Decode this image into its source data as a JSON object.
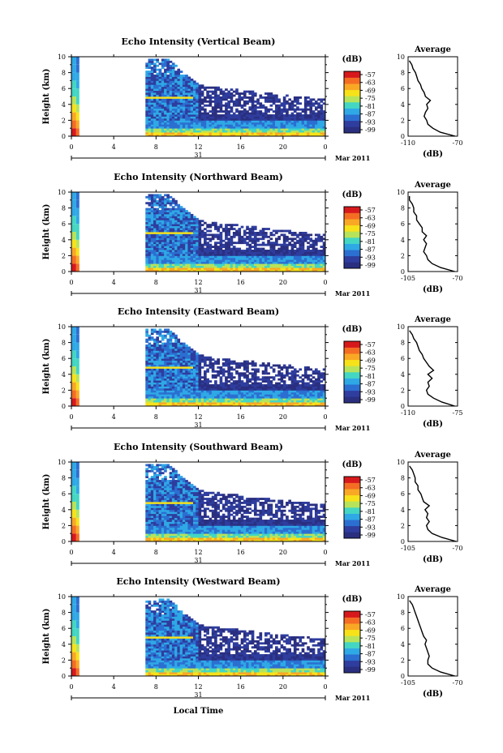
{
  "figure": {
    "panel_titles": [
      "Echo Intensity (Vertical Beam)",
      "Echo Intensity (Northward Beam)",
      "Echo Intensity (Eastward Beam)",
      "Echo Intensity (Southward Beam)",
      "Echo Intensity (Westward Beam)"
    ],
    "ylabel": "Height (km)",
    "x_ticks": [
      "0",
      "4",
      "8",
      "12",
      "16",
      "20",
      "0"
    ],
    "day_label": "31",
    "month_label": "Mar 2011",
    "xlabel_bottom": "Local Time",
    "y_ticks": [
      "0",
      "2",
      "4",
      "6",
      "8",
      "10"
    ],
    "colorbar_title": "(dB)",
    "colorbar_ticks": [
      "-57",
      "-63",
      "-69",
      "-75",
      "-81",
      "-87",
      "-93",
      "-99"
    ],
    "colorbar_colors": [
      "#d7191c",
      "#f46d23",
      "#f9a825",
      "#f7e21a",
      "#b7e35a",
      "#43d6c3",
      "#2fa8e6",
      "#2b6fd1",
      "#2e3d9e",
      "#2a2f80"
    ],
    "average_title": "Average",
    "average_xlabel": "(dB)",
    "average_x_ticks": [
      [
        "-110",
        "-70"
      ],
      [
        "-105",
        "-70"
      ],
      [
        "-110",
        "-75"
      ],
      [
        "-105",
        "-70"
      ],
      [
        "-105",
        "-70"
      ]
    ],
    "average_y_ticks": [
      "0",
      "2",
      "4",
      "6",
      "8",
      "10"
    ]
  },
  "chart_data": {
    "type": "heatmap",
    "x_unit": "local time (h)",
    "xlim": [
      0,
      24
    ],
    "ylim": [
      0,
      10
    ],
    "colorbar_range_db": [
      -99,
      -57
    ],
    "panels": [
      {
        "title": "Echo Intensity (Vertical Beam)",
        "data_gap_hours": [
          1,
          7
        ],
        "profile_xlim": [
          -110,
          -70
        ],
        "average_profile": {
          "height_km": [
            0,
            0.5,
            1,
            1.5,
            2,
            2.5,
            3,
            3.5,
            4,
            4.5,
            5,
            5.5,
            6,
            6.5,
            7,
            7.5,
            8,
            8.5,
            9,
            9.5
          ],
          "db": [
            -72,
            -84,
            -90,
            -94,
            -95,
            -97,
            -96,
            -94,
            -95,
            -92,
            -96,
            -97,
            -99,
            -100,
            -102,
            -103,
            -104,
            -106,
            -107,
            -109
          ]
        }
      },
      {
        "title": "Echo Intensity (Northward Beam)",
        "data_gap_hours": [
          1,
          7
        ],
        "profile_xlim": [
          -105,
          -70
        ],
        "average_profile": {
          "height_km": [
            0,
            0.5,
            1,
            1.5,
            2,
            2.5,
            3,
            3.5,
            4,
            4.5,
            5,
            5.5,
            6,
            6.5,
            7,
            7.5,
            8,
            8.5,
            9,
            9.5
          ],
          "db": [
            -72,
            -82,
            -88,
            -91,
            -92,
            -94,
            -93,
            -92,
            -94,
            -92,
            -95,
            -95,
            -97,
            -99,
            -99,
            -101,
            -101,
            -102,
            -104,
            -104
          ]
        }
      },
      {
        "title": "Echo Intensity (Eastward Beam)",
        "data_gap_hours": [
          1,
          7
        ],
        "profile_xlim": [
          -110,
          -75
        ],
        "average_profile": {
          "height_km": [
            0,
            0.5,
            1,
            1.5,
            2,
            2.5,
            3,
            3.5,
            4,
            4.5,
            5,
            5.5,
            6,
            6.5,
            7,
            7.5,
            8,
            8.5,
            9,
            9.5
          ],
          "db": [
            -77,
            -86,
            -92,
            -96,
            -97,
            -95,
            -96,
            -93,
            -96,
            -92,
            -95,
            -97,
            -99,
            -100,
            -102,
            -103,
            -104,
            -106,
            -107,
            -109
          ]
        }
      },
      {
        "title": "Echo Intensity (Southward Beam)",
        "data_gap_hours": [
          1,
          7
        ],
        "profile_xlim": [
          -105,
          -70
        ],
        "average_profile": {
          "height_km": [
            0,
            0.5,
            1,
            1.5,
            2,
            2.5,
            3,
            3.5,
            4,
            4.5,
            5,
            5.5,
            6,
            6.5,
            7,
            7.5,
            8,
            8.5,
            9,
            9.5
          ],
          "db": [
            -71,
            -81,
            -88,
            -91,
            -92,
            -90,
            -92,
            -91,
            -93,
            -90,
            -94,
            -95,
            -96,
            -98,
            -98,
            -100,
            -100,
            -101,
            -102,
            -104
          ]
        }
      },
      {
        "title": "Echo Intensity (Westward Beam)",
        "data_gap_hours": [
          1,
          7
        ],
        "profile_xlim": [
          -105,
          -70
        ],
        "average_profile": {
          "height_km": [
            0,
            0.5,
            1,
            1.5,
            2,
            2.5,
            3,
            3.5,
            4,
            4.5,
            5,
            5.5,
            6,
            6.5,
            7,
            7.5,
            8,
            8.5,
            9,
            9.5
          ],
          "db": [
            -72,
            -82,
            -88,
            -91,
            -91,
            -90,
            -91,
            -92,
            -93,
            -92,
            -94,
            -95,
            -96,
            -97,
            -98,
            -99,
            -100,
            -101,
            -102,
            -104
          ]
        }
      }
    ]
  }
}
